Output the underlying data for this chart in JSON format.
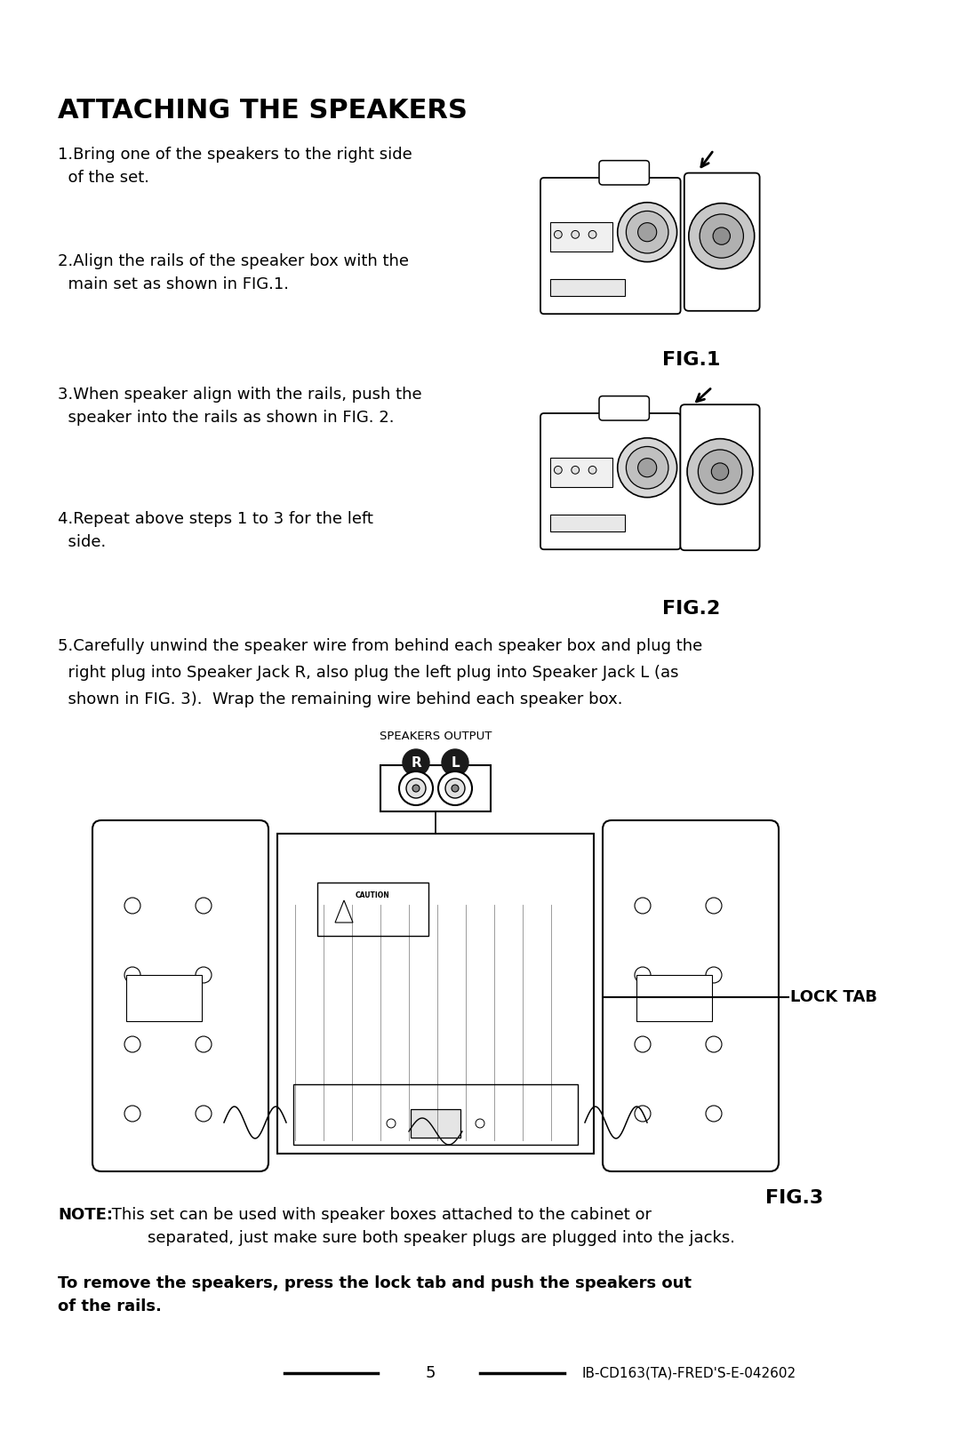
{
  "bg_color": "#ffffff",
  "title": "ATTACHING THE SPEAKERS",
  "step1": "1.Bring one of the speakers to the right side\n  of the set.",
  "step2": "2.Align the rails of the speaker box with the\n  main set as shown in FIG.1.",
  "step3": "3.When speaker align with the rails, push the\n  speaker into the rails as shown in FIG. 2.",
  "step4": "4.Repeat above steps 1 to 3 for the left\n  side.",
  "step5_line1": "5.Carefully unwind the speaker wire from behind each speaker box and plug the",
  "step5_line2": "  right plug into Speaker Jack R, also plug the left plug into Speaker Jack L (as",
  "step5_line3": "  shown in FIG. 3).  Wrap the remaining wire behind each speaker box.",
  "fig1_label": "FIG.1",
  "fig2_label": "FIG.2",
  "fig3_label": "FIG.3",
  "lock_tab_label": "LOCK TAB",
  "speakers_output_label": "SPEAKERS OUTPUT",
  "note_bold": "NOTE:",
  "note_text": " This set can be used with speaker boxes attached to the cabinet or\n        separated, just make sure both speaker plugs are plugged into the jacks.",
  "bold_text": "To remove the speakers, press the lock tab and push the speakers out\nof the rails.",
  "page_number": "5",
  "model_code": "IB-CD163(TA)-FRED'S-E-042602"
}
